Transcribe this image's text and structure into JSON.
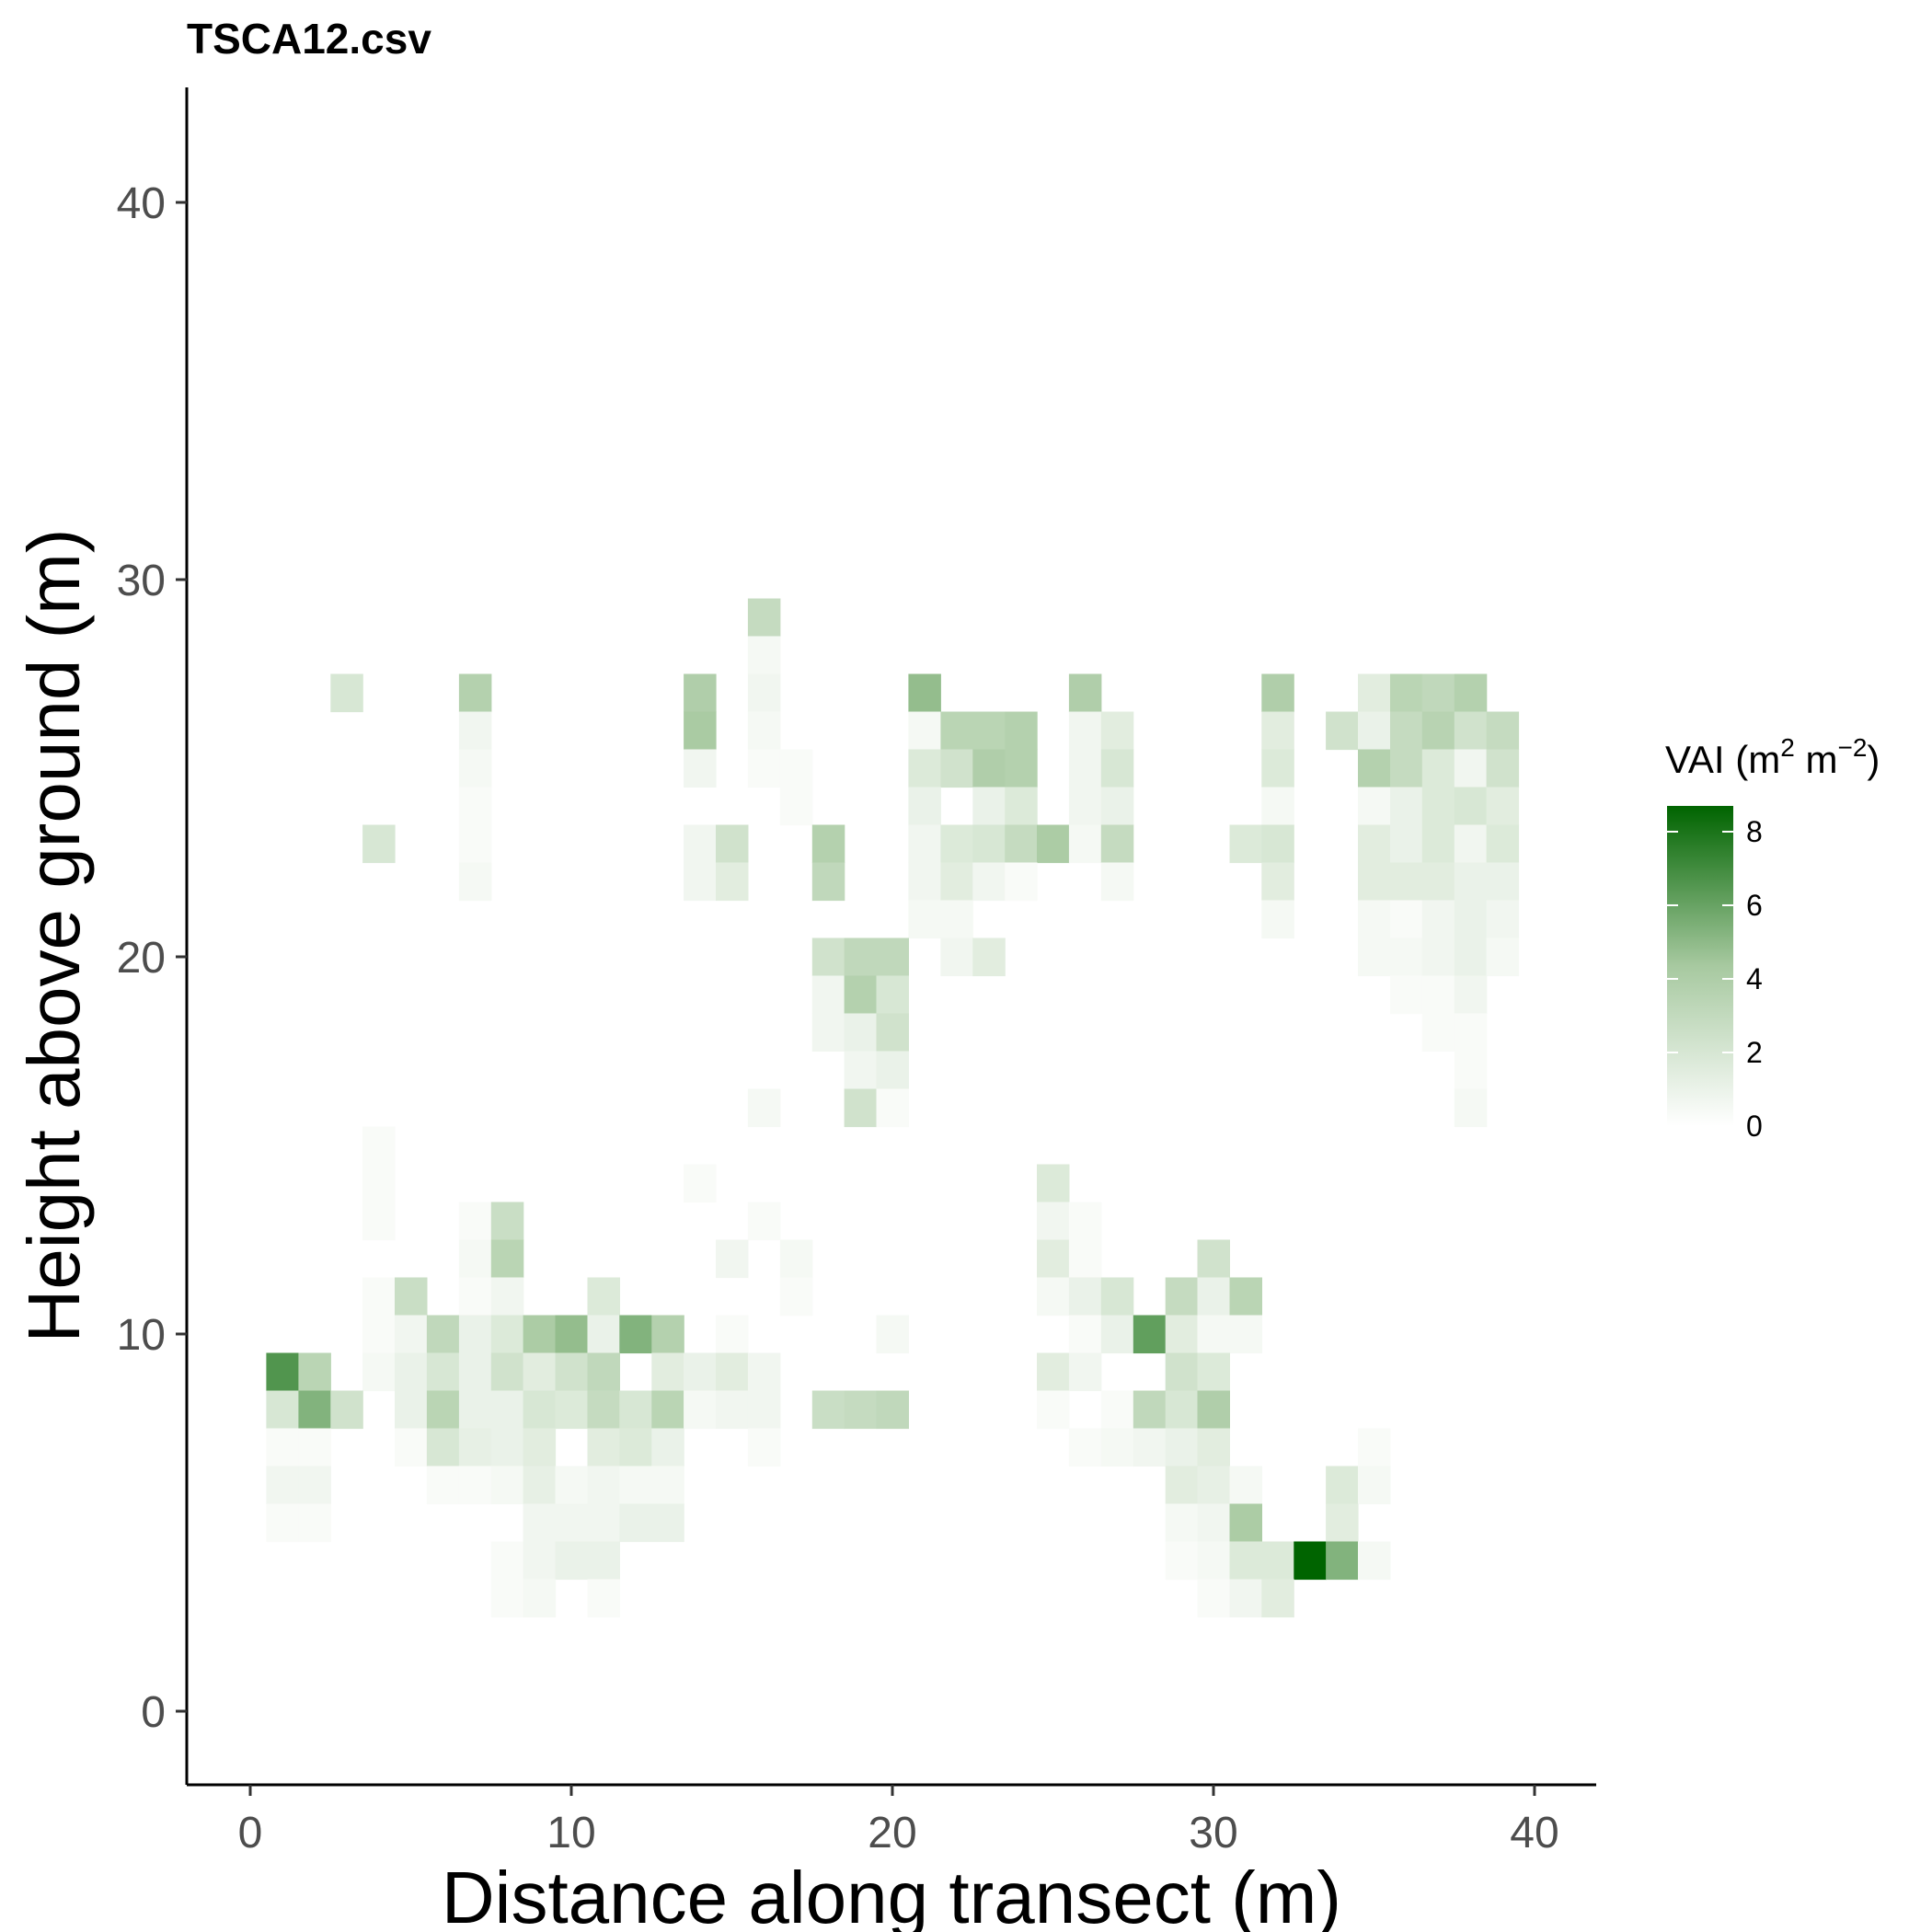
{
  "chart_data": {
    "type": "heatmap",
    "title": "TSCA12.csv",
    "xlabel": "Distance along transect (m)",
    "ylabel": "Height above ground (m)",
    "xlim": [
      -2,
      42
    ],
    "ylim": [
      -4,
      43
    ],
    "x_ticks": [
      "0",
      "10",
      "20",
      "30",
      "40"
    ],
    "y_ticks": [
      "0",
      "10",
      "20",
      "30",
      "40"
    ],
    "grid": false,
    "legend": {
      "title": "VAI (m",
      "title_sup1": "2",
      "title_mid": " m",
      "title_sup2": "−2",
      "title_end": ")",
      "ticks": [
        "0",
        "2",
        "4",
        "6",
        "8"
      ],
      "range": [
        0,
        8.7
      ],
      "placement": "right",
      "color_low": "#ffffff",
      "color_high": "#006400"
    },
    "cells": [
      [
        16,
        29,
        2.0
      ],
      [
        16,
        28,
        0.2
      ],
      [
        3,
        27,
        1.2
      ],
      [
        7,
        27,
        2.8
      ],
      [
        14,
        27,
        3.0
      ],
      [
        16,
        27,
        0.3
      ],
      [
        21,
        27,
        4.0
      ],
      [
        26,
        27,
        3.0
      ],
      [
        32,
        27,
        3.0
      ],
      [
        35,
        27,
        0.8
      ],
      [
        36,
        27,
        2.5
      ],
      [
        37,
        27,
        2.2
      ],
      [
        38,
        27,
        2.8
      ],
      [
        7,
        26,
        0.3
      ],
      [
        14,
        26,
        3.3
      ],
      [
        16,
        26,
        0.2
      ],
      [
        21,
        26,
        0.2
      ],
      [
        22,
        26,
        2.5
      ],
      [
        23,
        26,
        2.5
      ],
      [
        24,
        26,
        2.8
      ],
      [
        26,
        26,
        0.3
      ],
      [
        27,
        26,
        0.8
      ],
      [
        32,
        26,
        0.8
      ],
      [
        34,
        26,
        1.5
      ],
      [
        35,
        26,
        0.5
      ],
      [
        36,
        26,
        2.0
      ],
      [
        37,
        26,
        2.6
      ],
      [
        38,
        26,
        1.5
      ],
      [
        39,
        26,
        2.0
      ],
      [
        7,
        25,
        0.2
      ],
      [
        14,
        25,
        0.3
      ],
      [
        16,
        25,
        0.1
      ],
      [
        17,
        25,
        0.1
      ],
      [
        21,
        25,
        1.0
      ],
      [
        22,
        25,
        1.5
      ],
      [
        23,
        25,
        3.0
      ],
      [
        24,
        25,
        2.8
      ],
      [
        26,
        25,
        0.3
      ],
      [
        27,
        25,
        1.2
      ],
      [
        32,
        25,
        1.0
      ],
      [
        35,
        25,
        2.8
      ],
      [
        36,
        25,
        2.0
      ],
      [
        37,
        25,
        1.0
      ],
      [
        38,
        25,
        0.3
      ],
      [
        39,
        25,
        1.5
      ],
      [
        7,
        24,
        0.1
      ],
      [
        17,
        24,
        0.1
      ],
      [
        21,
        24,
        0.5
      ],
      [
        23,
        24,
        0.5
      ],
      [
        24,
        24,
        1.0
      ],
      [
        26,
        24,
        0.3
      ],
      [
        27,
        24,
        0.5
      ],
      [
        32,
        24,
        0.2
      ],
      [
        35,
        24,
        0.2
      ],
      [
        36,
        24,
        0.5
      ],
      [
        37,
        24,
        1.0
      ],
      [
        38,
        24,
        1.2
      ],
      [
        39,
        24,
        0.8
      ],
      [
        4,
        23,
        1.2
      ],
      [
        7,
        23,
        0.1
      ],
      [
        14,
        23,
        0.3
      ],
      [
        15,
        23,
        1.5
      ],
      [
        18,
        23,
        2.8
      ],
      [
        21,
        23,
        0.3
      ],
      [
        22,
        23,
        1.0
      ],
      [
        23,
        23,
        1.2
      ],
      [
        24,
        23,
        2.0
      ],
      [
        25,
        23,
        3.2
      ],
      [
        26,
        23,
        0.2
      ],
      [
        27,
        23,
        2.0
      ],
      [
        31,
        23,
        1.0
      ],
      [
        32,
        23,
        1.2
      ],
      [
        35,
        23,
        0.8
      ],
      [
        36,
        23,
        0.5
      ],
      [
        37,
        23,
        1.0
      ],
      [
        38,
        23,
        0.3
      ],
      [
        39,
        23,
        1.0
      ],
      [
        7,
        22,
        0.2
      ],
      [
        14,
        22,
        0.3
      ],
      [
        15,
        22,
        0.8
      ],
      [
        18,
        22,
        2.2
      ],
      [
        21,
        22,
        0.3
      ],
      [
        22,
        22,
        0.8
      ],
      [
        23,
        22,
        0.3
      ],
      [
        24,
        22,
        0.1
      ],
      [
        27,
        22,
        0.2
      ],
      [
        32,
        22,
        0.8
      ],
      [
        35,
        22,
        0.8
      ],
      [
        36,
        22,
        0.8
      ],
      [
        37,
        22,
        0.8
      ],
      [
        38,
        22,
        0.5
      ],
      [
        39,
        22,
        0.5
      ],
      [
        21,
        21,
        0.2
      ],
      [
        22,
        21,
        0.2
      ],
      [
        32,
        21,
        0.2
      ],
      [
        35,
        21,
        0.2
      ],
      [
        36,
        21,
        0.1
      ],
      [
        37,
        21,
        0.3
      ],
      [
        38,
        21,
        0.5
      ],
      [
        39,
        21,
        0.3
      ],
      [
        18,
        20,
        1.5
      ],
      [
        19,
        20,
        2.2
      ],
      [
        20,
        20,
        2.2
      ],
      [
        22,
        20,
        0.3
      ],
      [
        23,
        20,
        0.8
      ],
      [
        35,
        20,
        0.2
      ],
      [
        36,
        20,
        0.2
      ],
      [
        37,
        20,
        0.3
      ],
      [
        38,
        20,
        0.5
      ],
      [
        39,
        20,
        0.2
      ],
      [
        18,
        19,
        0.3
      ],
      [
        19,
        19,
        2.8
      ],
      [
        20,
        19,
        1.2
      ],
      [
        36,
        19,
        0.1
      ],
      [
        37,
        19,
        0.1
      ],
      [
        38,
        19,
        0.3
      ],
      [
        18,
        18,
        0.3
      ],
      [
        19,
        18,
        0.5
      ],
      [
        20,
        18,
        1.5
      ],
      [
        37,
        18,
        0.1
      ],
      [
        38,
        18,
        0.1
      ],
      [
        19,
        17,
        0.3
      ],
      [
        20,
        17,
        0.5
      ],
      [
        38,
        17,
        0.1
      ],
      [
        16,
        16,
        0.2
      ],
      [
        19,
        16,
        1.5
      ],
      [
        20,
        16,
        0.1
      ],
      [
        38,
        16,
        0.2
      ],
      [
        4,
        15,
        0.1
      ],
      [
        4,
        14,
        0.1
      ],
      [
        14,
        14,
        0.1
      ],
      [
        25,
        14,
        1.0
      ],
      [
        4,
        13,
        0.1
      ],
      [
        7,
        13,
        0.1
      ],
      [
        8,
        13,
        1.8
      ],
      [
        16,
        13,
        0.1
      ],
      [
        25,
        13,
        0.3
      ],
      [
        26,
        13,
        0.1
      ],
      [
        7,
        12,
        0.2
      ],
      [
        8,
        12,
        2.5
      ],
      [
        15,
        12,
        0.3
      ],
      [
        17,
        12,
        0.2
      ],
      [
        25,
        12,
        0.8
      ],
      [
        26,
        12,
        0.1
      ],
      [
        30,
        12,
        1.5
      ],
      [
        4,
        11,
        0.1
      ],
      [
        5,
        11,
        1.8
      ],
      [
        7,
        11,
        0.1
      ],
      [
        8,
        11,
        0.3
      ],
      [
        11,
        11,
        1.0
      ],
      [
        17,
        11,
        0.1
      ],
      [
        25,
        11,
        0.2
      ],
      [
        26,
        11,
        0.5
      ],
      [
        27,
        11,
        1.2
      ],
      [
        29,
        11,
        2.0
      ],
      [
        30,
        11,
        0.5
      ],
      [
        31,
        11,
        2.5
      ],
      [
        4,
        10,
        0.1
      ],
      [
        5,
        10,
        0.3
      ],
      [
        6,
        10,
        2.2
      ],
      [
        7,
        10,
        0.5
      ],
      [
        8,
        10,
        1.0
      ],
      [
        9,
        10,
        3.2
      ],
      [
        10,
        10,
        4.0
      ],
      [
        11,
        10,
        0.5
      ],
      [
        12,
        10,
        4.5
      ],
      [
        13,
        10,
        2.8
      ],
      [
        15,
        10,
        0.1
      ],
      [
        20,
        10,
        0.2
      ],
      [
        26,
        10,
        0.1
      ],
      [
        27,
        10,
        0.5
      ],
      [
        28,
        10,
        5.5
      ],
      [
        29,
        10,
        0.8
      ],
      [
        30,
        10,
        0.2
      ],
      [
        31,
        10,
        0.2
      ],
      [
        1,
        9,
        6.0
      ],
      [
        2,
        9,
        2.5
      ],
      [
        4,
        9,
        0.2
      ],
      [
        5,
        9,
        0.5
      ],
      [
        6,
        9,
        1.2
      ],
      [
        7,
        9,
        0.5
      ],
      [
        8,
        9,
        1.5
      ],
      [
        9,
        9,
        0.8
      ],
      [
        10,
        9,
        1.5
      ],
      [
        11,
        9,
        2.2
      ],
      [
        13,
        9,
        0.8
      ],
      [
        14,
        9,
        0.5
      ],
      [
        15,
        9,
        0.8
      ],
      [
        16,
        9,
        0.3
      ],
      [
        25,
        9,
        0.8
      ],
      [
        26,
        9,
        0.3
      ],
      [
        29,
        9,
        1.5
      ],
      [
        30,
        9,
        1.0
      ],
      [
        1,
        8,
        1.2
      ],
      [
        2,
        8,
        4.5
      ],
      [
        3,
        8,
        1.5
      ],
      [
        5,
        8,
        0.5
      ],
      [
        6,
        8,
        2.5
      ],
      [
        7,
        8,
        0.5
      ],
      [
        8,
        8,
        0.5
      ],
      [
        9,
        8,
        1.2
      ],
      [
        10,
        8,
        1.0
      ],
      [
        11,
        8,
        2.0
      ],
      [
        12,
        8,
        1.2
      ],
      [
        13,
        8,
        2.5
      ],
      [
        14,
        8,
        0.2
      ],
      [
        15,
        8,
        0.3
      ],
      [
        16,
        8,
        0.3
      ],
      [
        18,
        8,
        1.8
      ],
      [
        19,
        8,
        2.0
      ],
      [
        20,
        8,
        2.2
      ],
      [
        25,
        8,
        0.1
      ],
      [
        27,
        8,
        0.1
      ],
      [
        28,
        8,
        2.2
      ],
      [
        29,
        8,
        1.2
      ],
      [
        30,
        8,
        3.0
      ],
      [
        1,
        7,
        0.1
      ],
      [
        2,
        7,
        0.1
      ],
      [
        5,
        7,
        0.1
      ],
      [
        6,
        7,
        1.2
      ],
      [
        7,
        7,
        0.6
      ],
      [
        8,
        7,
        0.5
      ],
      [
        9,
        7,
        0.8
      ],
      [
        11,
        7,
        0.8
      ],
      [
        12,
        7,
        1.0
      ],
      [
        13,
        7,
        0.5
      ],
      [
        16,
        7,
        0.1
      ],
      [
        26,
        7,
        0.1
      ],
      [
        27,
        7,
        0.2
      ],
      [
        28,
        7,
        0.3
      ],
      [
        29,
        7,
        0.5
      ],
      [
        30,
        7,
        0.8
      ],
      [
        35,
        7,
        0.1
      ],
      [
        1,
        6,
        0.3
      ],
      [
        2,
        6,
        0.3
      ],
      [
        6,
        6,
        0.1
      ],
      [
        7,
        6,
        0.1
      ],
      [
        8,
        6,
        0.2
      ],
      [
        9,
        6,
        0.6
      ],
      [
        10,
        6,
        0.2
      ],
      [
        11,
        6,
        0.3
      ],
      [
        12,
        6,
        0.2
      ],
      [
        13,
        6,
        0.2
      ],
      [
        29,
        6,
        0.8
      ],
      [
        30,
        6,
        0.6
      ],
      [
        31,
        6,
        0.2
      ],
      [
        34,
        6,
        1.0
      ],
      [
        35,
        6,
        0.2
      ],
      [
        1,
        5,
        0.1
      ],
      [
        2,
        5,
        0.1
      ],
      [
        9,
        5,
        0.3
      ],
      [
        10,
        5,
        0.3
      ],
      [
        11,
        5,
        0.3
      ],
      [
        12,
        5,
        0.5
      ],
      [
        13,
        5,
        0.5
      ],
      [
        29,
        5,
        0.2
      ],
      [
        30,
        5,
        0.3
      ],
      [
        31,
        5,
        3.2
      ],
      [
        34,
        5,
        0.8
      ],
      [
        8,
        4,
        0.1
      ],
      [
        9,
        4,
        0.3
      ],
      [
        10,
        4,
        0.5
      ],
      [
        11,
        4,
        0.5
      ],
      [
        29,
        4,
        0.1
      ],
      [
        30,
        4,
        0.2
      ],
      [
        31,
        4,
        1.0
      ],
      [
        32,
        4,
        1.0
      ],
      [
        33,
        4,
        8.7
      ],
      [
        34,
        4,
        4.5
      ],
      [
        35,
        4,
        0.2
      ],
      [
        8,
        3,
        0.1
      ],
      [
        9,
        3,
        0.2
      ],
      [
        11,
        3,
        0.1
      ],
      [
        30,
        3,
        0.1
      ],
      [
        31,
        3,
        0.3
      ],
      [
        32,
        3,
        0.8
      ]
    ]
  }
}
